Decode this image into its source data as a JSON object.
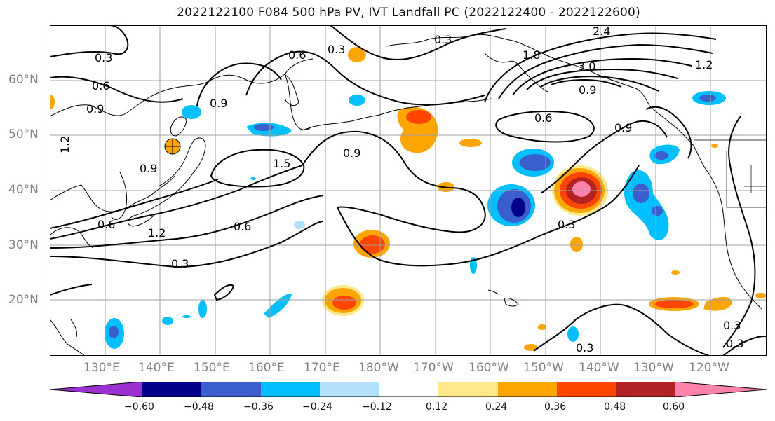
{
  "title": "2022122100 F084 500 hPa PV, IVT Landfall PC (2022122400 - 2022122600)",
  "lat_labels": [
    "60°N",
    "50°N",
    "40°N",
    "30°N",
    "20°N"
  ],
  "lon_labels": [
    "130°E",
    "140°E",
    "150°E",
    "160°E",
    "170°E",
    "180°W",
    "170°W",
    "160°W",
    "150°W",
    "140°W",
    "130°W",
    "120°W"
  ],
  "contour_labels": [
    "0.3",
    "0.6",
    "0.9",
    "1.2",
    "1.5",
    "1.8",
    "2.4",
    "3.0"
  ],
  "colorbar": {
    "ticks": [
      "−0.60",
      "−0.48",
      "−0.36",
      "−0.24",
      "−0.12",
      "0.12",
      "0.24",
      "0.36",
      "0.48",
      "0.60"
    ],
    "colors": [
      "#9b30d0",
      "#00008b",
      "#3a5fcd",
      "#00bfff",
      "#b2e2ff",
      "#ffffff",
      "#ffe98a",
      "#ffa500",
      "#ff4500",
      "#b22222",
      "#ff82ab"
    ]
  },
  "colors": {
    "contour": "#000000",
    "grid": "#a0a0a0",
    "coast": "#000000"
  }
}
